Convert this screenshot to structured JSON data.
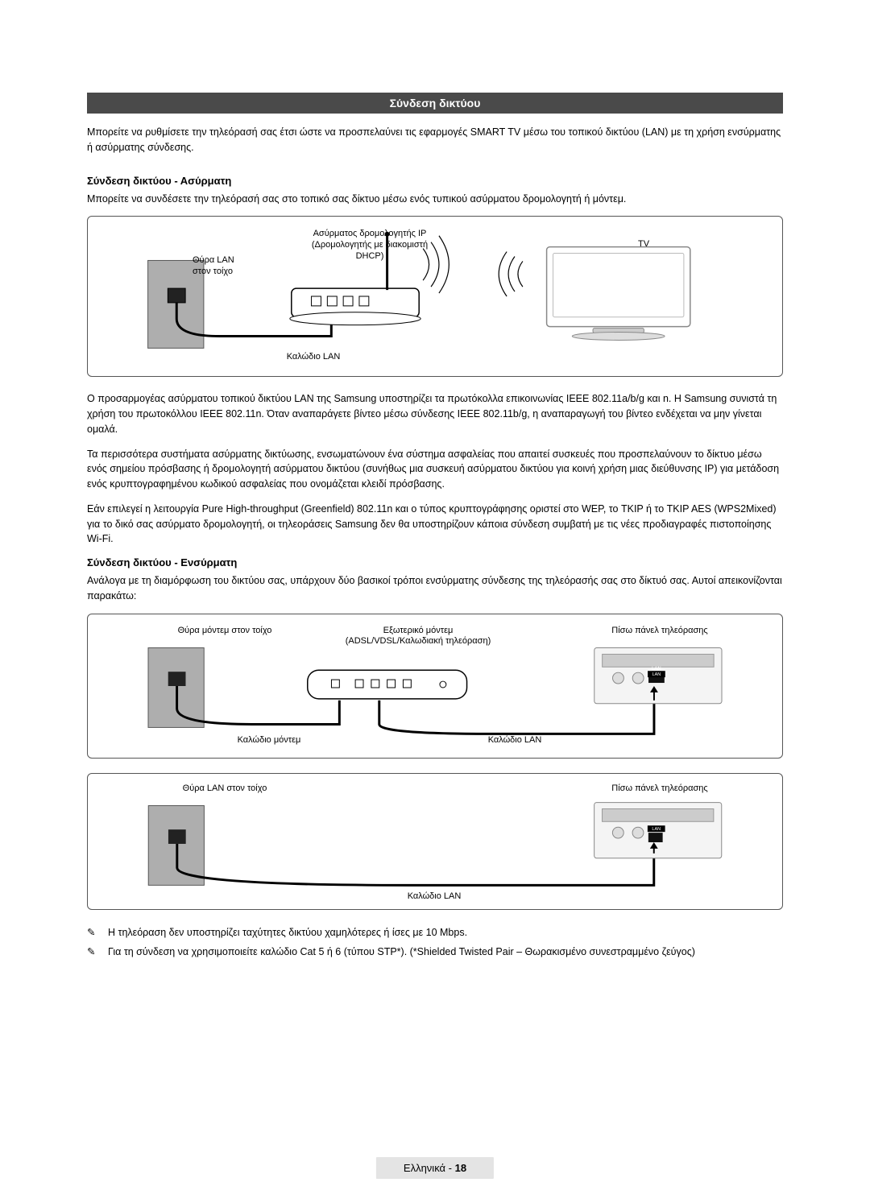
{
  "header": {
    "title": "Σύνδεση δικτύου"
  },
  "intro": "Μπορείτε να ρυθμίσετε την τηλεόρασή σας έτσι ώστε να προσπελαύνει τις εφαρμογές SMART TV μέσω του τοπικού δικτύου (LAN) με τη χρήση ενσύρματης ή ασύρματης σύνδεσης.",
  "wireless": {
    "heading": "Σύνδεση δικτύου - Ασύρματη",
    "intro": "Μπορείτε να συνδέσετε την τηλεόρασή σας στο τοπικό σας δίκτυο μέσω ενός τυπικού ασύρματου δρομολογητή ή μόντεμ.",
    "labels": {
      "lan_port": "Θύρα LAN\nστον τοίχο",
      "router": "Ασύρματος δρομολογητής IP\n(Δρομολογητής με διακομιστή\nDHCP)",
      "tv": "TV",
      "lan_cable": "Καλώδιο LAN"
    },
    "p1": "Ο προσαρμογέας ασύρματου τοπικού δικτύου LAN της Samsung υποστηρίζει τα πρωτόκολλα επικοινωνίας IEEE 802.11a/b/g και n. Η Samsung συνιστά τη χρήση του πρωτοκόλλου IEEE 802.11n. Όταν αναπαράγετε βίντεο μέσω σύνδεσης IEEE 802.11b/g, η αναπαραγωγή του βίντεο ενδέχεται να μην γίνεται ομαλά.",
    "p2": "Τα περισσότερα συστήματα ασύρματης δικτύωσης, ενσωματώνουν ένα σύστημα ασφαλείας που απαιτεί συσκευές που προσπελαύνουν το δίκτυο μέσω ενός σημείου πρόσβασης ή δρομολογητή ασύρματου δικτύου (συνήθως μια συσκευή ασύρματου δικτύου για κοινή χρήση μιας διεύθυνσης IP) για μετάδοση ενός κρυπτογραφημένου κωδικού ασφαλείας που ονομάζεται κλειδί πρόσβασης.",
    "p3": "Εάν επιλεγεί η λειτουργία Pure High-throughput (Greenfield) 802.11n και ο τύπος κρυπτογράφησης οριστεί στο WEP, το TKIP ή το TKIP AES (WPS2Mixed) για το δικό σας ασύρματο δρομολογητή, οι τηλεοράσεις Samsung δεν θα υποστηρίζουν κάποια σύνδεση συμβατή με τις νέες προδιαγραφές πιστοποίησης Wi-Fi."
  },
  "wired": {
    "heading": "Σύνδεση δικτύου - Ενσύρματη",
    "intro": "Ανάλογα με τη διαμόρφωση του δικτύου σας, υπάρχουν δύο βασικοί τρόποι ενσύρματης σύνδεσης της τηλεόρασής σας στο δίκτυό σας. Αυτοί απεικονίζονται παρακάτω:",
    "labels1": {
      "wall_port": "Θύρα μόντεμ στον τοίχο",
      "modem": "Εξωτερικό μόντεμ\n(ADSL/VDSL/Καλωδιακή τηλεόραση)",
      "tv_back": "Πίσω πάνελ τηλεόρασης",
      "modem_cable": "Καλώδιο μόντεμ",
      "lan_cable": "Καλώδιο LAN"
    },
    "labels2": {
      "wall_port": "Θύρα LAN στον τοίχο",
      "tv_back": "Πίσω πάνελ τηλεόρασης",
      "lan_cable": "Καλώδιο LAN"
    }
  },
  "notes": {
    "n1": "Η τηλεόραση δεν υποστηρίζει ταχύτητες δικτύου χαμηλότερες ή ίσες με 10 Mbps.",
    "n2": "Για τη σύνδεση να χρησιμοποιείτε καλώδιο Cat 5 ή 6 (τύπου STP*). (*Shielded Twisted Pair – Θωρακισμένο συνεστραμμένο ζεύγος)"
  },
  "footer": {
    "lang": "Ελληνικά",
    "sep": " - ",
    "page": "18"
  },
  "colors": {
    "header_bg": "#4a4a4a",
    "header_fg": "#ffffff",
    "text": "#000000",
    "border": "#555555",
    "footer_bg": "#e4e4e4"
  }
}
